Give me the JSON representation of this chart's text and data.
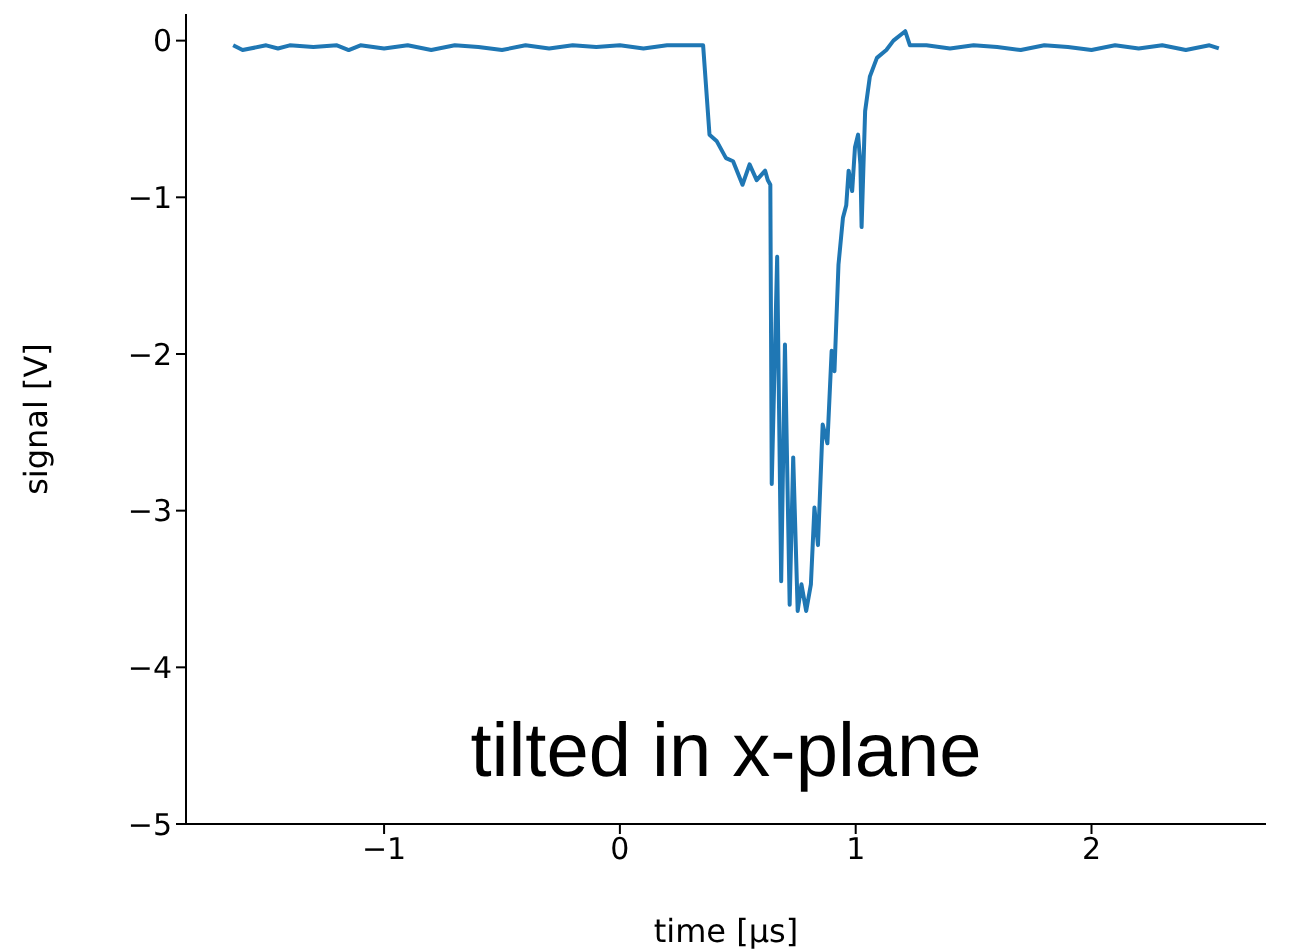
{
  "chart_data": {
    "type": "line",
    "xlabel": "time [μs]",
    "ylabel": "signal [V]",
    "annotations": [
      "tilted in x-plane"
    ],
    "x": [
      -1.64,
      -1.6,
      -1.5,
      -1.45,
      -1.4,
      -1.3,
      -1.2,
      -1.15,
      -1.1,
      -1.0,
      -0.9,
      -0.8,
      -0.7,
      -0.6,
      -0.5,
      -0.4,
      -0.3,
      -0.2,
      -0.1,
      0.0,
      0.1,
      0.2,
      0.3,
      0.353,
      0.38,
      0.41,
      0.45,
      0.48,
      0.52,
      0.55,
      0.58,
      0.616,
      0.627,
      0.638,
      0.644,
      0.667,
      0.684,
      0.7,
      0.72,
      0.735,
      0.754,
      0.77,
      0.79,
      0.81,
      0.825,
      0.84,
      0.86,
      0.88,
      0.898,
      0.91,
      0.927,
      0.946,
      0.96,
      0.97,
      0.985,
      0.997,
      1.01,
      1.02,
      1.025,
      1.04,
      1.06,
      1.09,
      1.13,
      1.16,
      1.21,
      1.23,
      1.3,
      1.4,
      1.5,
      1.6,
      1.7,
      1.8,
      1.9,
      2.0,
      2.1,
      2.2,
      2.3,
      2.4,
      2.5,
      2.54
    ],
    "series": [
      {
        "color": "#1f77b4",
        "values": [
          -0.03,
          -0.06,
          -0.03,
          -0.05,
          -0.03,
          -0.04,
          -0.03,
          -0.06,
          -0.03,
          -0.05,
          -0.03,
          -0.06,
          -0.03,
          -0.04,
          -0.06,
          -0.03,
          -0.05,
          -0.03,
          -0.04,
          -0.03,
          -0.05,
          -0.03,
          -0.03,
          -0.03,
          -0.6,
          -0.64,
          -0.75,
          -0.77,
          -0.92,
          -0.79,
          -0.89,
          -0.83,
          -0.89,
          -0.92,
          -2.83,
          -1.38,
          -3.45,
          -1.94,
          -3.6,
          -2.66,
          -3.64,
          -3.47,
          -3.64,
          -3.47,
          -2.98,
          -3.22,
          -2.45,
          -2.57,
          -1.98,
          -2.11,
          -1.43,
          -1.13,
          -1.05,
          -0.83,
          -0.96,
          -0.68,
          -0.6,
          -0.79,
          -1.19,
          -0.45,
          -0.23,
          -0.11,
          -0.06,
          0.0,
          0.06,
          -0.03,
          -0.03,
          -0.05,
          -0.03,
          -0.04,
          -0.06,
          -0.03,
          -0.04,
          -0.06,
          -0.03,
          -0.05,
          -0.03,
          -0.06,
          -0.03,
          -0.05
        ]
      }
    ],
    "xlim": [
      -1.84,
      2.74
    ],
    "ylim": [
      -5.0,
      0.17
    ],
    "xticks": [
      {
        "value": -1,
        "label": "−1"
      },
      0,
      1,
      2
    ],
    "yticks": [
      0,
      {
        "value": -1,
        "label": "−1"
      },
      {
        "value": -2,
        "label": "−2"
      },
      {
        "value": -3,
        "label": "−3"
      },
      {
        "value": -4,
        "label": "−4"
      },
      {
        "value": -5,
        "label": "−5"
      }
    ],
    "grid": false,
    "legend": false,
    "marker": "none",
    "line_style": "solid"
  }
}
